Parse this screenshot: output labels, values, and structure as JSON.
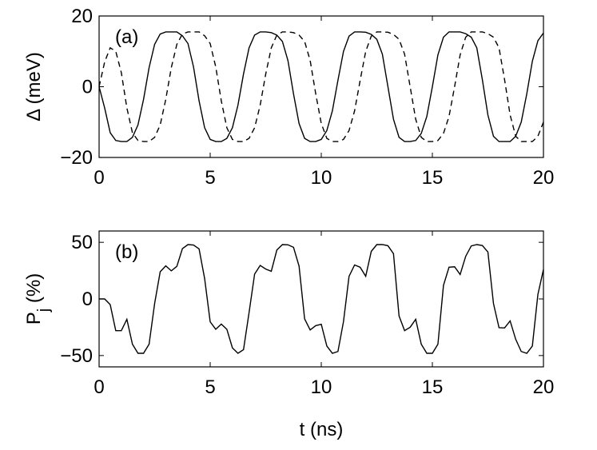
{
  "chart_data": [
    {
      "type": "line",
      "annotation": "(a)",
      "ylabel": [
        "Δ (meV)"
      ],
      "x": [
        0,
        0.25,
        0.5,
        0.75,
        1,
        1.25,
        1.5,
        1.75,
        2,
        2.25,
        2.5,
        2.75,
        3,
        3.25,
        3.5,
        3.75,
        4,
        4.25,
        4.5,
        4.75,
        5,
        5.25,
        5.5,
        5.75,
        6,
        6.25,
        6.5,
        6.75,
        7,
        7.25,
        7.5,
        7.75,
        8,
        8.25,
        8.5,
        8.75,
        9,
        9.25,
        9.5,
        9.75,
        10,
        10.25,
        10.5,
        10.75,
        11,
        11.25,
        11.5,
        11.75,
        12,
        12.25,
        12.5,
        12.75,
        13,
        13.25,
        13.5,
        13.75,
        14,
        14.25,
        14.5,
        14.75,
        15,
        15.25,
        15.5,
        15.75,
        16,
        16.25,
        16.5,
        16.75,
        17,
        17.25,
        17.5,
        17.75,
        18,
        18.25,
        18.5,
        18.75,
        19,
        19.25,
        19.5,
        19.75,
        20
      ],
      "series": [
        {
          "color": "#000000",
          "dash": false,
          "values": [
            0,
            -6,
            -13,
            -15.2,
            -15.5,
            -15.5,
            -14.3,
            -10.8,
            -3.6,
            5.4,
            12,
            14.9,
            15.5,
            15.5,
            15.5,
            14.4,
            12.2,
            5.6,
            -4,
            -11.6,
            -14.9,
            -15.5,
            -15.5,
            -14.6,
            -11.6,
            -5.2,
            3.6,
            11,
            14.6,
            15.5,
            15.5,
            15.3,
            14.6,
            12.8,
            7.4,
            -2,
            -10.4,
            -14.6,
            -15.5,
            -15.5,
            -14.9,
            -12.4,
            -6.8,
            1.8,
            10,
            14.3,
            15.5,
            15.5,
            15.4,
            14.8,
            13.4,
            9.2,
            0,
            -9.2,
            -14.3,
            -15.5,
            -15.5,
            -15.2,
            -13.2,
            -8.4,
            0,
            9,
            14,
            15.5,
            15.5,
            15.5,
            15,
            14,
            11,
            2,
            -8,
            -14,
            -15.5,
            -15.5,
            -15.5,
            -14,
            -10,
            -2,
            7.2,
            13,
            15.2
          ]
        },
        {
          "color": "#000000",
          "dash": true,
          "values": [
            0,
            7,
            11,
            10,
            4,
            -6,
            -13,
            -15.2,
            -15.5,
            -15.5,
            -14.3,
            -10.8,
            -3.6,
            5.4,
            12,
            14.9,
            15.5,
            15.5,
            15.5,
            14.4,
            12.2,
            5.6,
            -4,
            -11.6,
            -14.9,
            -15.5,
            -15.5,
            -14.6,
            -11.6,
            -5.2,
            3.6,
            11,
            14.6,
            15.5,
            15.5,
            15.3,
            14.6,
            12.8,
            7.4,
            -2,
            -10.4,
            -14.6,
            -15.5,
            -15.5,
            -14.9,
            -12.4,
            -6.8,
            1.8,
            10,
            14.3,
            15.5,
            15.5,
            15.4,
            14.8,
            13.4,
            9.2,
            0,
            -9.2,
            -14.3,
            -15.5,
            -15.5,
            -15.2,
            -13.2,
            -8.4,
            0,
            9,
            14,
            15.5,
            15.5,
            15.5,
            15,
            14,
            11,
            2,
            -8,
            -14,
            -15.5,
            -15.5,
            -15.5,
            -14,
            -10
          ]
        }
      ],
      "xlim": [
        0,
        20
      ],
      "xticks": [
        0,
        5,
        10,
        15,
        20
      ],
      "ylim": [
        -20,
        20
      ],
      "yticks": [
        {
          "value": -20,
          "label": "−20"
        },
        0,
        20
      ]
    },
    {
      "type": "line",
      "annotation": "(b)",
      "ylabel": [
        "P",
        "j",
        " (%)"
      ],
      "xlabel": "t (ns)",
      "x": [
        0,
        0.25,
        0.5,
        0.75,
        1,
        1.25,
        1.5,
        1.75,
        2,
        2.25,
        2.5,
        2.75,
        3,
        3.25,
        3.5,
        3.75,
        4,
        4.25,
        4.5,
        4.75,
        5,
        5.25,
        5.5,
        5.75,
        6,
        6.25,
        6.5,
        6.75,
        7,
        7.25,
        7.5,
        7.75,
        8,
        8.25,
        8.5,
        8.75,
        9,
        9.25,
        9.5,
        9.75,
        10,
        10.25,
        10.5,
        10.75,
        11,
        11.25,
        11.5,
        11.75,
        12,
        12.25,
        12.5,
        12.75,
        13,
        13.25,
        13.5,
        13.75,
        14,
        14.25,
        14.5,
        14.75,
        15,
        15.25,
        15.5,
        15.75,
        16,
        16.25,
        16.5,
        16.75,
        17,
        17.25,
        17.5,
        17.75,
        18,
        18.25,
        18.5,
        18.75,
        19,
        19.25,
        19.5,
        19.75,
        20
      ],
      "series": [
        {
          "color": "#000000",
          "dash": false,
          "values": [
            0,
            0,
            -5,
            -28,
            -28,
            -18,
            -40,
            -48,
            -48,
            -40,
            -4,
            24,
            29.2,
            24.8,
            28.8,
            44.4,
            48,
            47.6,
            44.2,
            18,
            -20.2,
            -26.8,
            -22.2,
            -26.8,
            -43.2,
            -48,
            -44.8,
            -12,
            22,
            29.6,
            26.4,
            24.4,
            43.2,
            48,
            47.8,
            45.6,
            29,
            -17.6,
            -27.4,
            -23.6,
            -22.4,
            -41.6,
            -48,
            -46.4,
            -20,
            20,
            30,
            28,
            20,
            42,
            48,
            48,
            47,
            40,
            -15,
            -28,
            -25,
            -18,
            -40,
            -48,
            -48,
            -40,
            12,
            28,
            28.4,
            21.6,
            37.6,
            46.8,
            48,
            47.2,
            41.4,
            -4,
            -25.4,
            -25.6,
            -19.4,
            -35.6,
            -46.4,
            -48,
            -41.6,
            4,
            26
          ]
        }
      ],
      "xlim": [
        0,
        20
      ],
      "xticks": [
        0,
        5,
        10,
        15,
        20
      ],
      "ylim": [
        -60,
        60
      ],
      "yticks": [
        {
          "value": -50,
          "label": "−50"
        },
        0,
        50
      ]
    }
  ]
}
